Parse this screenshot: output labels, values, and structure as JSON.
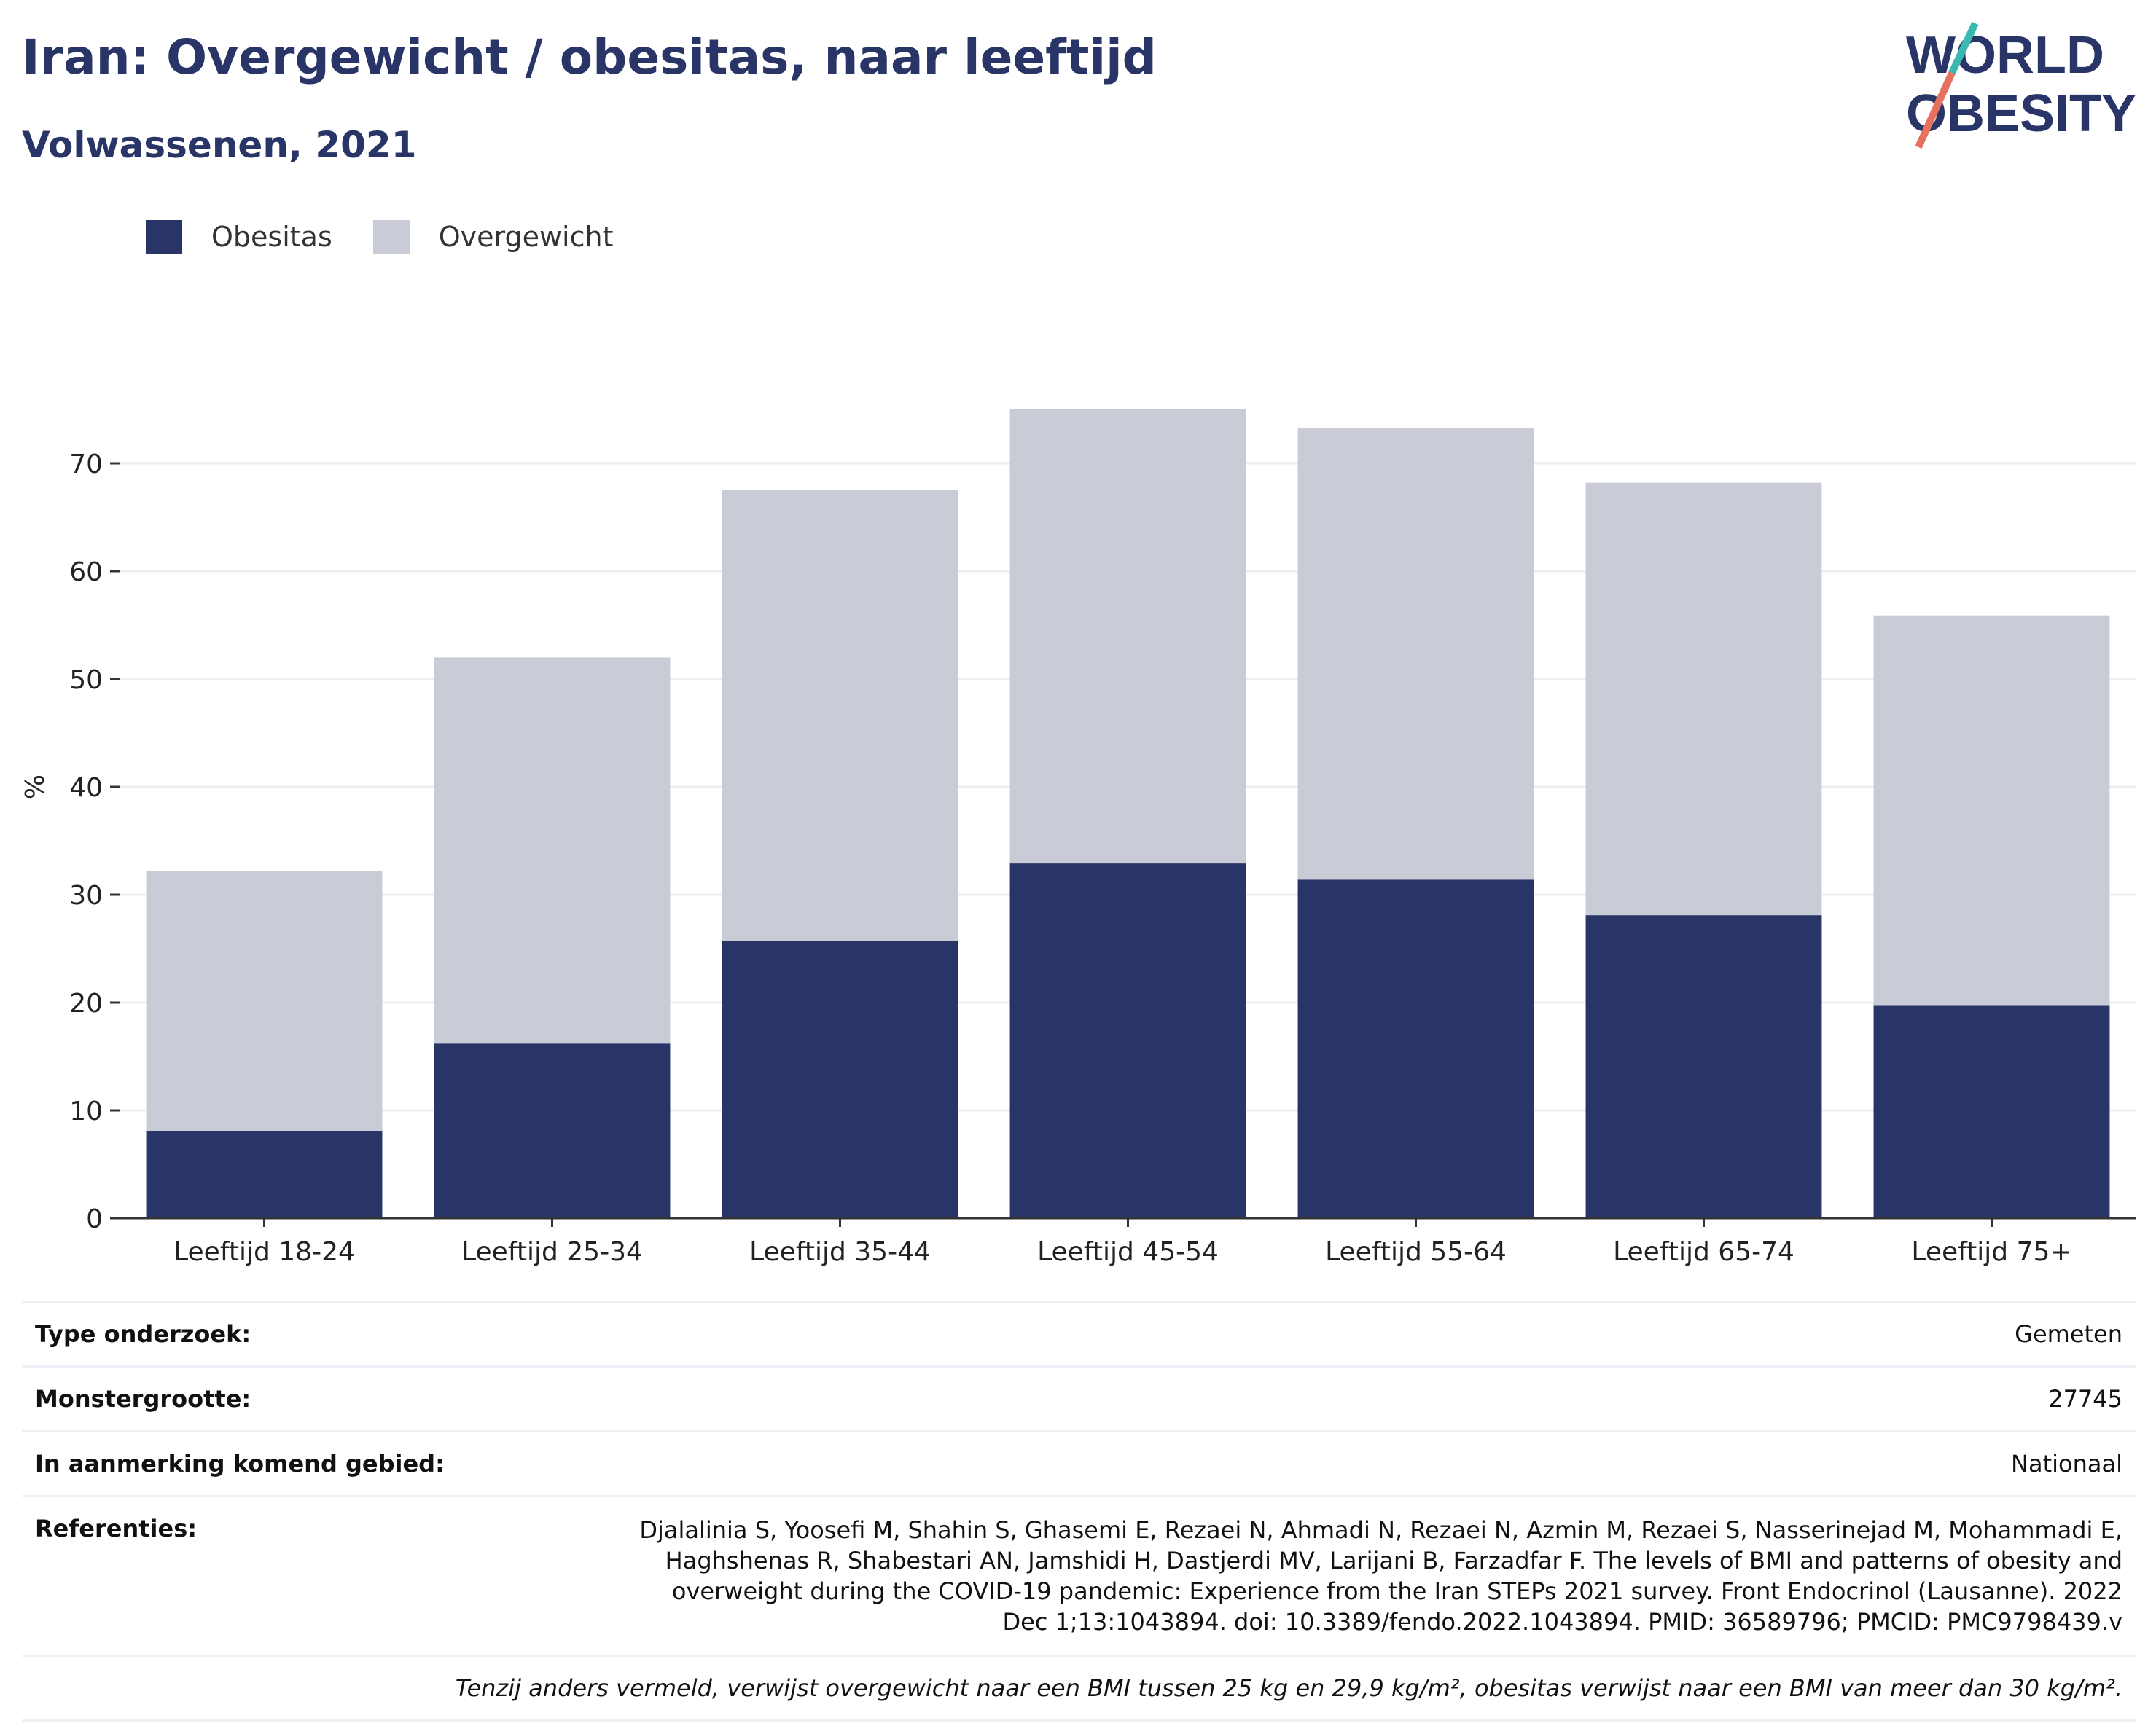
{
  "header": {
    "title": "Iran: Overgewicht / obesitas, naar leeftijd",
    "subtitle": "Volwassenen, 2021"
  },
  "logo": {
    "line1": "WORLD",
    "line2": "OBESITY"
  },
  "colors": {
    "obesity": "#283566",
    "overweight": "#c9cbd6",
    "text": "#283566",
    "accent_teal": "#3bb8b0",
    "accent_coral": "#e8705f"
  },
  "chart_data": {
    "type": "bar",
    "stacked": true,
    "categories": [
      "Leeftijd 18-24",
      "Leeftijd 25-34",
      "Leeftijd 35-44",
      "Leeftijd 45-54",
      "Leeftijd 55-64",
      "Leeftijd 65-74",
      "Leeftijd 75+"
    ],
    "series": [
      {
        "name": "Obesitas",
        "color": "#283566",
        "values": [
          8.1,
          16.2,
          25.7,
          32.9,
          31.4,
          28.1,
          19.7
        ]
      },
      {
        "name": "Overgewicht",
        "color": "#c9cbd6",
        "values": [
          24.1,
          35.8,
          41.8,
          42.1,
          41.9,
          40.1,
          36.2
        ]
      }
    ],
    "ylabel": "%",
    "ylim": [
      0,
      80
    ],
    "yticks": [
      0,
      10,
      20,
      30,
      40,
      50,
      60,
      70
    ],
    "grid": true,
    "legend_position": "top-left"
  },
  "info": {
    "rows": [
      {
        "label": "Type onderzoek:",
        "value": "Gemeten"
      },
      {
        "label": "Monstergrootte:",
        "value": "27745"
      },
      {
        "label": "In aanmerking komend gebied:",
        "value": "Nationaal"
      }
    ],
    "references_label": "Referenties:",
    "references_value": "Djalalinia S, Yoosefi M, Shahin S, Ghasemi E, Rezaei N, Ahmadi N, Rezaei N, Azmin M, Rezaei S, Nasserinejad M, Mohammadi E, Haghshenas R, Shabestari AN, Jamshidi H, Dastjerdi MV, Larijani B, Farzadfar F. The levels of BMI and patterns of obesity and overweight during the COVID-19 pandemic: Experience from the Iran STEPs 2021 survey. Front Endocrinol (Lausanne). 2022 Dec 1;13:1043894. doi: 10.3389/fendo.2022.1043894. PMID: 36589796; PMCID: PMC9798439.v",
    "footnote": "Tenzij anders vermeld, verwijst overgewicht naar een BMI tussen 25 kg en 29,9 kg/m², obesitas verwijst naar een BMI van meer dan 30 kg/m²."
  }
}
